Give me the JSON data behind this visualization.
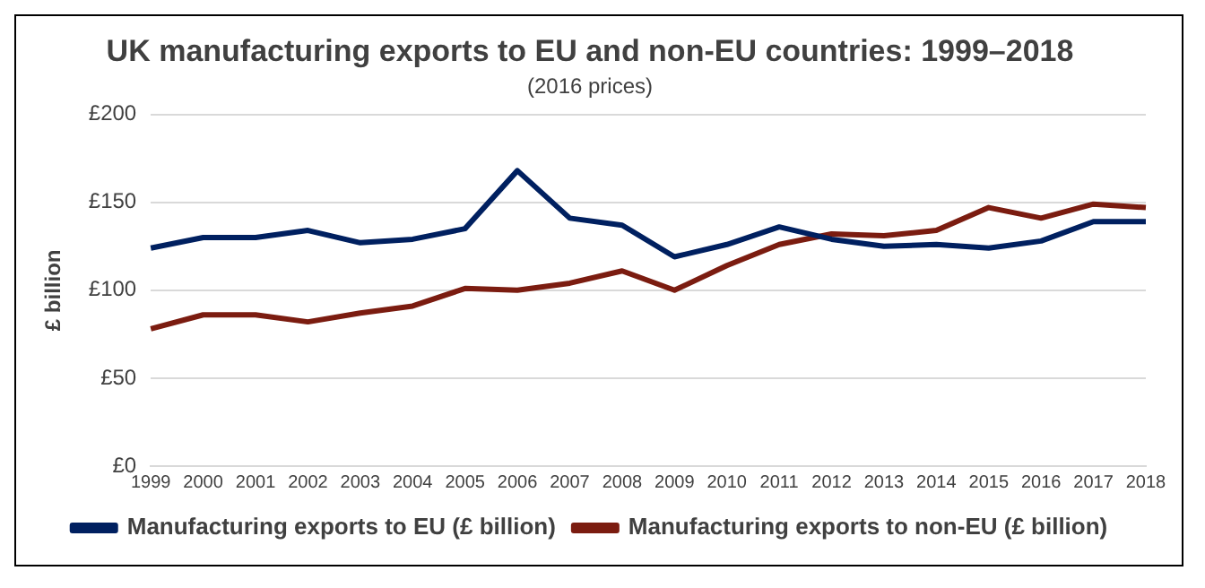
{
  "chart_data": {
    "type": "line",
    "title": "UK manufacturing exports to EU and non-EU countries: 1999–2018",
    "subtitle": "(2016 prices)",
    "ylabel": "£ billion",
    "categories": [
      "1999",
      "2000",
      "2001",
      "2002",
      "2003",
      "2004",
      "2005",
      "2006",
      "2007",
      "2008",
      "2009",
      "2010",
      "2011",
      "2012",
      "2013",
      "2014",
      "2015",
      "2016",
      "2017",
      "2018"
    ],
    "series": [
      {
        "name": "Manufacturing exports to EU (£ billion)",
        "color": "#002060",
        "values": [
          124,
          130,
          130,
          134,
          127,
          129,
          135,
          168,
          141,
          137,
          119,
          126,
          136,
          129,
          125,
          126,
          124,
          128,
          139,
          139
        ]
      },
      {
        "name": "Manufacturing exports to non-EU (£ billion)",
        "color": "#7b1c10",
        "values": [
          78,
          86,
          86,
          82,
          87,
          91,
          101,
          100,
          104,
          111,
          100,
          114,
          126,
          132,
          131,
          134,
          147,
          141,
          149,
          147
        ]
      }
    ],
    "ylim": [
      0,
      200
    ],
    "yticks": [
      {
        "value": 0,
        "label": "£0"
      },
      {
        "value": 50,
        "label": "£50"
      },
      {
        "value": 100,
        "label": "£100"
      },
      {
        "value": 150,
        "label": "£150"
      },
      {
        "value": 200,
        "label": "£200"
      }
    ],
    "grid": "y",
    "legend": "bottom",
    "marker": "none",
    "line_style": "solid"
  }
}
